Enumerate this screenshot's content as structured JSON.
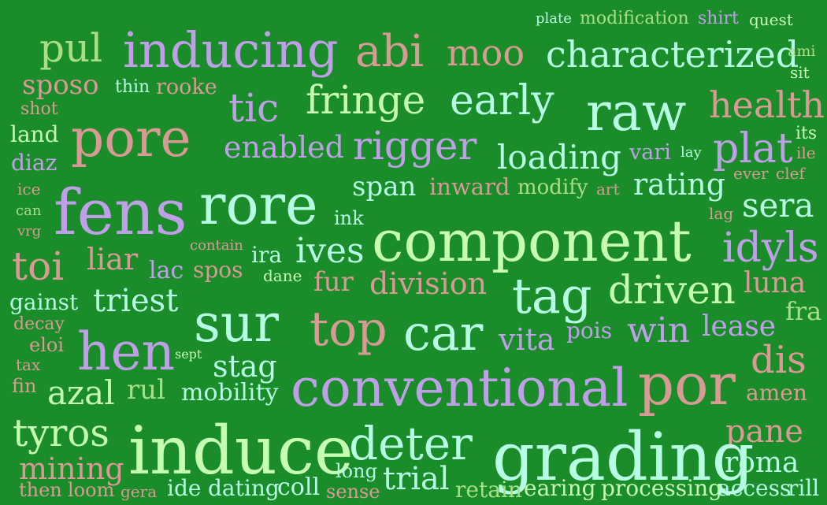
{
  "palette": {
    "background": "#1b8c2a",
    "light_green": "#c6ffb4",
    "lavender": "#bfa0e8",
    "salmon": "#d89a94",
    "mint": "#b7ffe4",
    "olive_green": "#a9dd88"
  },
  "words": [
    "plate",
    "modification",
    "shirt",
    "quest",
    "pul",
    "inducing",
    "abi",
    "moo",
    "characterized",
    "ami",
    "sit",
    "sposo",
    "thin",
    "rooke",
    "shot",
    "tic",
    "fringe",
    "early",
    "raw",
    "health",
    "land",
    "pore",
    "its",
    "diaz",
    "enabled",
    "rigger",
    "loading",
    "vari",
    "lay",
    "plat",
    "ile",
    "ever",
    "clef",
    "ice",
    "span",
    "inward",
    "modify",
    "art",
    "rating",
    "can",
    "fens",
    "rore",
    "ink",
    "lag",
    "sera",
    "vrg",
    "contain",
    "component",
    "toi",
    "liar",
    "ira",
    "ives",
    "idyls",
    "lac",
    "spos",
    "dane",
    "fur",
    "division",
    "luna",
    "gainst",
    "triest",
    "tag",
    "driven",
    "decay",
    "fra",
    "sur",
    "top",
    "car",
    "lease",
    "eloi",
    "pois",
    "win",
    "vita",
    "hen",
    "sept",
    "dis",
    "tax",
    "stag",
    "fin",
    "azal",
    "rul",
    "mobility",
    "conventional",
    "por",
    "amen",
    "tyros",
    "deter",
    "pane",
    "induce",
    "grading",
    "roma",
    "mining",
    "long",
    "trial",
    "then",
    "loom",
    "gera",
    "ide",
    "dating",
    "coll",
    "sense",
    "retain",
    "earing",
    "processing",
    "access",
    "rill"
  ]
}
